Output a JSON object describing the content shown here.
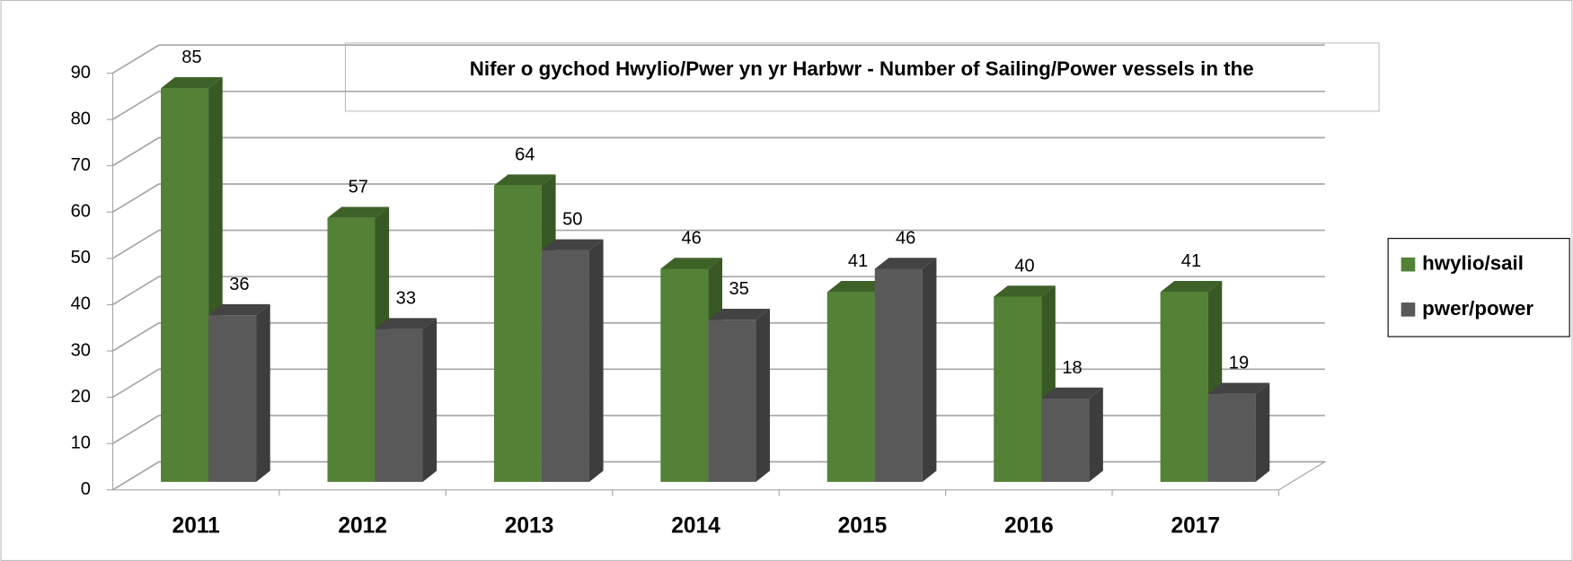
{
  "chart_data": {
    "type": "bar3d",
    "title": "Nifer o gychod Hwylio/Pwer yn yr Harbwr - Number of  Sailing/Power vessels in the",
    "categories": [
      "2011",
      "2012",
      "2013",
      "2014",
      "2015",
      "2016",
      "2017"
    ],
    "series": [
      {
        "name": "hwylio/sail",
        "color": "#538135",
        "values": [
          85,
          57,
          64,
          46,
          41,
          40,
          41
        ]
      },
      {
        "name": "pwer/power",
        "color": "#595959",
        "values": [
          36,
          33,
          50,
          35,
          46,
          18,
          19
        ]
      }
    ],
    "ylim": [
      0,
      90
    ],
    "yticks": [
      0,
      10,
      20,
      30,
      40,
      50,
      60,
      70,
      80,
      90
    ],
    "grid": true,
    "legend": "right",
    "data_labels": true
  }
}
